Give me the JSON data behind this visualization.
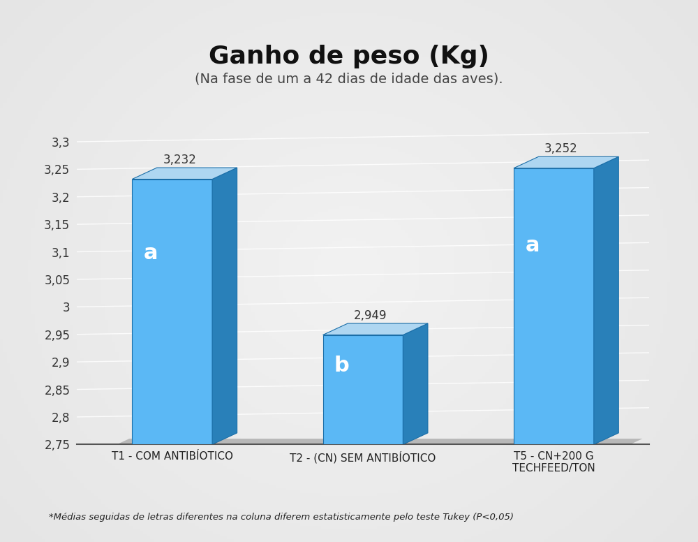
{
  "title": "Ganho de peso (Kg)",
  "subtitle": "(Na fase de um a 42 dias de idade das aves).",
  "categories": [
    "T1 - COM ANTIBÍOTICO",
    "T2 - (CN) SEM ANTIBÍOTICO",
    "T5 - CN+200 G\nTECHFEED/TON"
  ],
  "values": [
    3.232,
    2.949,
    3.252
  ],
  "labels": [
    "a",
    "b",
    "a"
  ],
  "value_labels": [
    "3,232",
    "2,949",
    "3,252"
  ],
  "ylim": [
    2.75,
    3.3
  ],
  "yticks": [
    2.75,
    2.8,
    2.85,
    2.9,
    2.95,
    3.0,
    3.05,
    3.1,
    3.15,
    3.2,
    3.25,
    3.3
  ],
  "bar_face_color": "#5BB8F5",
  "bar_side_color": "#2980B9",
  "bar_top_color": "#AED6F1",
  "bar_edge_color": "#1A6EA8",
  "floor_color": "#C0C0C0",
  "bg_color_center": "#F0F0F0",
  "bg_color_edge": "#BEBEBE",
  "footnote": "*Médias seguidas de letras diferentes na coluna diferem estatisticamente pelo teste Tukey (P<0,05)",
  "title_fontsize": 26,
  "subtitle_fontsize": 14,
  "tick_fontsize": 12,
  "label_fontsize": 11,
  "letter_fontsize": 22,
  "value_fontsize": 12
}
